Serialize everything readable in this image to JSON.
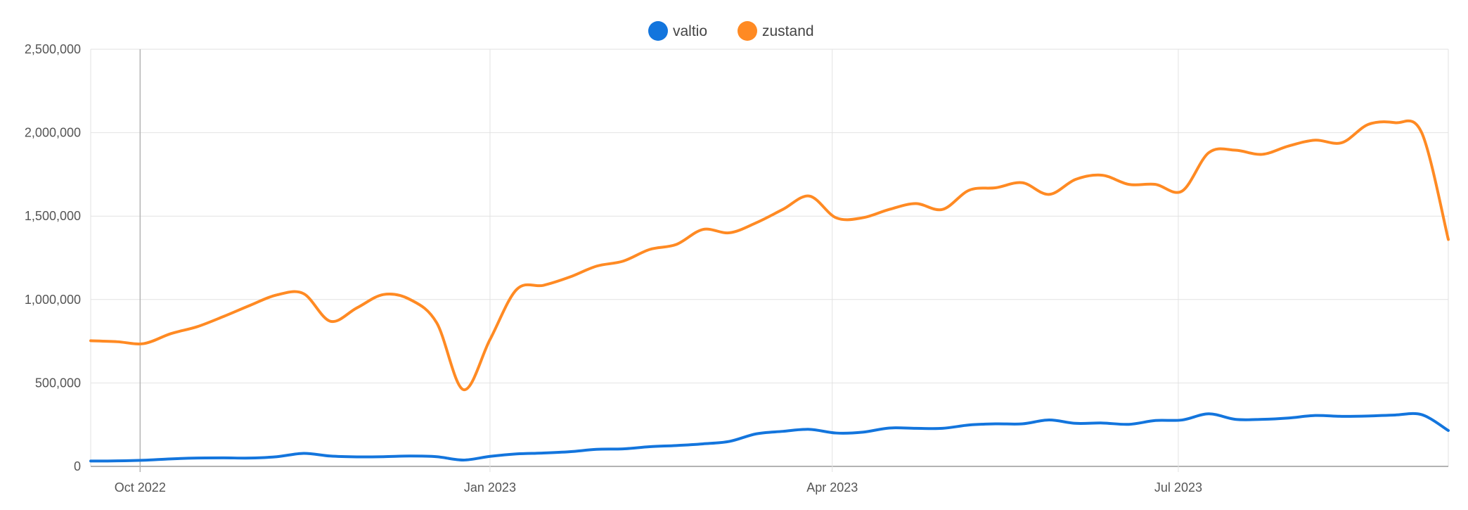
{
  "chart_data": {
    "type": "line",
    "title": "",
    "xlabel": "",
    "ylabel": "",
    "ylim": [
      0,
      2500000
    ],
    "yticks": [
      "0",
      "500,000",
      "1,000,000",
      "1,500,000",
      "2,000,000",
      "2,500,000"
    ],
    "ytick_values": [
      0,
      500000,
      1000000,
      1500000,
      2000000,
      2500000
    ],
    "xlim": [
      "2022-09-18",
      "2023-09-10"
    ],
    "xticks": [
      {
        "label": "Oct 2022",
        "date": "2022-10-01"
      },
      {
        "label": "Jan 2023",
        "date": "2023-01-01"
      },
      {
        "label": "Apr 2023",
        "date": "2023-04-01"
      },
      {
        "label": "Jul 2023",
        "date": "2023-07-01"
      }
    ],
    "grid": true,
    "legend_position": "top-center",
    "x": [
      "2022-09-18",
      "2022-09-25",
      "2022-10-02",
      "2022-10-09",
      "2022-10-16",
      "2022-10-23",
      "2022-10-30",
      "2022-11-06",
      "2022-11-13",
      "2022-11-20",
      "2022-11-27",
      "2022-12-04",
      "2022-12-11",
      "2022-12-18",
      "2022-12-25",
      "2023-01-01",
      "2023-01-08",
      "2023-01-15",
      "2023-01-22",
      "2023-01-29",
      "2023-02-05",
      "2023-02-12",
      "2023-02-19",
      "2023-02-26",
      "2023-03-05",
      "2023-03-12",
      "2023-03-19",
      "2023-03-26",
      "2023-04-02",
      "2023-04-09",
      "2023-04-16",
      "2023-04-23",
      "2023-04-30",
      "2023-05-07",
      "2023-05-14",
      "2023-05-21",
      "2023-05-28",
      "2023-06-04",
      "2023-06-11",
      "2023-06-18",
      "2023-06-25",
      "2023-07-02",
      "2023-07-09",
      "2023-07-16",
      "2023-07-23",
      "2023-07-30",
      "2023-08-06",
      "2023-08-13",
      "2023-08-20",
      "2023-08-27",
      "2023-09-03",
      "2023-09-10"
    ],
    "series": [
      {
        "name": "valtio",
        "color": "#1375dd",
        "values": [
          32000,
          33000,
          37000,
          45000,
          50000,
          51000,
          50000,
          58000,
          78000,
          62000,
          57000,
          58000,
          62000,
          58000,
          38000,
          60000,
          75000,
          80000,
          88000,
          102000,
          105000,
          118000,
          125000,
          135000,
          150000,
          195000,
          210000,
          222000,
          200000,
          205000,
          230000,
          228000,
          228000,
          248000,
          255000,
          255000,
          278000,
          258000,
          260000,
          252000,
          275000,
          278000,
          315000,
          282000,
          282000,
          290000,
          305000,
          300000,
          302000,
          308000,
          310000,
          215000
        ]
      },
      {
        "name": "zustand",
        "color": "#ff8a23",
        "values": [
          753000,
          747000,
          736000,
          795000,
          837000,
          899000,
          966000,
          1028000,
          1035000,
          870000,
          950000,
          1030000,
          1000000,
          860000,
          460000,
          760000,
          1060000,
          1085000,
          1135000,
          1200000,
          1230000,
          1300000,
          1330000,
          1420000,
          1400000,
          1460000,
          1540000,
          1620000,
          1490000,
          1490000,
          1540000,
          1575000,
          1540000,
          1655000,
          1670000,
          1700000,
          1630000,
          1720000,
          1745000,
          1690000,
          1690000,
          1650000,
          1880000,
          1895000,
          1870000,
          1920000,
          1955000,
          1940000,
          2050000,
          2060000,
          2000000,
          1360000
        ]
      }
    ]
  }
}
